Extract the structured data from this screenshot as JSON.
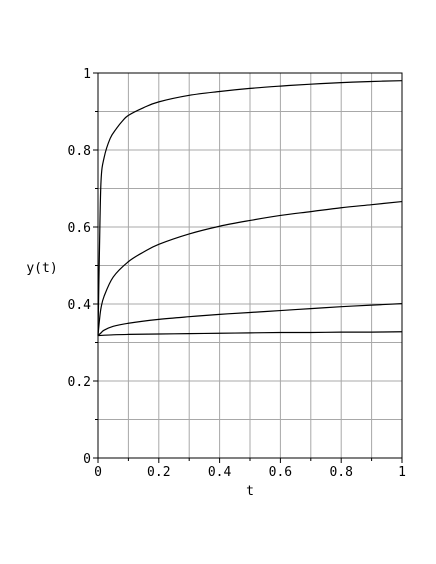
{
  "chart_data": {
    "type": "line",
    "title": "",
    "xlabel": "t",
    "ylabel": "y(t)",
    "xlim": [
      0,
      1
    ],
    "ylim": [
      0,
      1
    ],
    "grid": true,
    "legend": "none",
    "x_ticks": [
      {
        "value": 0,
        "label": "0"
      },
      {
        "value": 0.2,
        "label": "0.2"
      },
      {
        "value": 0.4,
        "label": "0.4"
      },
      {
        "value": 0.6,
        "label": "0.6"
      },
      {
        "value": 0.8,
        "label": "0.8"
      },
      {
        "value": 1,
        "label": "1"
      }
    ],
    "y_ticks": [
      {
        "value": 0,
        "label": "0"
      },
      {
        "value": 0.2,
        "label": "0.2"
      },
      {
        "value": 0.4,
        "label": "0.4"
      },
      {
        "value": 0.6,
        "label": "0.6"
      },
      {
        "value": 0.8,
        "label": "0.8"
      },
      {
        "value": 1,
        "label": "1"
      }
    ],
    "series": [
      {
        "x": [
          0,
          0.005,
          0.01,
          0.02,
          0.04,
          0.06,
          0.08,
          0.1,
          0.15,
          0.2,
          0.3,
          0.4,
          0.5,
          0.6,
          0.7,
          0.8,
          0.9,
          1.0
        ],
        "y": [
          0.318,
          0.55,
          0.72,
          0.78,
          0.83,
          0.855,
          0.875,
          0.89,
          0.91,
          0.925,
          0.942,
          0.952,
          0.96,
          0.966,
          0.971,
          0.975,
          0.978,
          0.98
        ]
      },
      {
        "x": [
          0,
          0.005,
          0.01,
          0.02,
          0.05,
          0.1,
          0.15,
          0.2,
          0.3,
          0.4,
          0.5,
          0.6,
          0.7,
          0.8,
          0.9,
          1.0
        ],
        "y": [
          0.318,
          0.36,
          0.39,
          0.42,
          0.47,
          0.51,
          0.535,
          0.555,
          0.582,
          0.602,
          0.617,
          0.63,
          0.64,
          0.65,
          0.658,
          0.666
        ]
      },
      {
        "x": [
          0,
          0.01,
          0.02,
          0.05,
          0.1,
          0.2,
          0.3,
          0.4,
          0.5,
          0.6,
          0.7,
          0.8,
          0.9,
          1.0
        ],
        "y": [
          0.318,
          0.325,
          0.332,
          0.342,
          0.35,
          0.36,
          0.367,
          0.373,
          0.378,
          0.383,
          0.388,
          0.393,
          0.397,
          0.401
        ]
      },
      {
        "x": [
          0,
          0.05,
          0.1,
          0.2,
          0.3,
          0.4,
          0.5,
          0.6,
          0.7,
          0.8,
          0.9,
          1.0
        ],
        "y": [
          0.318,
          0.32,
          0.321,
          0.322,
          0.323,
          0.324,
          0.325,
          0.326,
          0.326,
          0.327,
          0.327,
          0.328
        ]
      }
    ]
  }
}
